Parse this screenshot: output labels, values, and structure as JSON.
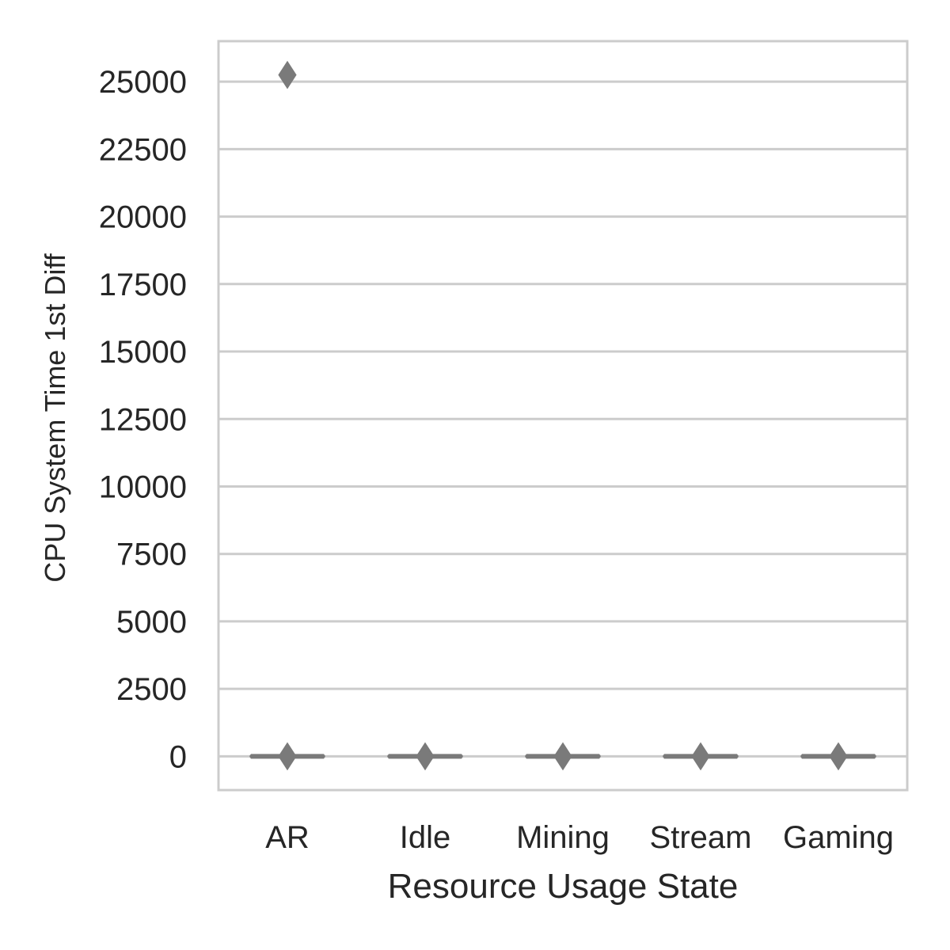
{
  "chart_data": {
    "type": "box",
    "title": "",
    "xlabel": "Resource Usage State",
    "ylabel": "CPU System Time 1st Diff",
    "categories": [
      "AR",
      "Idle",
      "Mining",
      "Stream",
      "Gaming"
    ],
    "ylim": [
      -1250,
      26500
    ],
    "yticks": [
      0,
      2500,
      5000,
      7500,
      10000,
      12500,
      15000,
      17500,
      20000,
      22500,
      25000
    ],
    "grid": "horizontal",
    "box_color": "#7a7a7a",
    "boxes": [
      {
        "category": "AR",
        "q1": 0,
        "median": 0,
        "q3": 0,
        "whisker_low": 0,
        "whisker_high": 0,
        "outliers": [
          0,
          25250
        ]
      },
      {
        "category": "Idle",
        "q1": 0,
        "median": 0,
        "q3": 0,
        "whisker_low": 0,
        "whisker_high": 0,
        "outliers": [
          0
        ]
      },
      {
        "category": "Mining",
        "q1": 0,
        "median": 0,
        "q3": 0,
        "whisker_low": 0,
        "whisker_high": 0,
        "outliers": [
          0
        ]
      },
      {
        "category": "Stream",
        "q1": 0,
        "median": 0,
        "q3": 0,
        "whisker_low": 0,
        "whisker_high": 0,
        "outliers": [
          0
        ]
      },
      {
        "category": "Gaming",
        "q1": 0,
        "median": 0,
        "q3": 0,
        "whisker_low": 0,
        "whisker_high": 0,
        "outliers": [
          0
        ]
      }
    ]
  }
}
